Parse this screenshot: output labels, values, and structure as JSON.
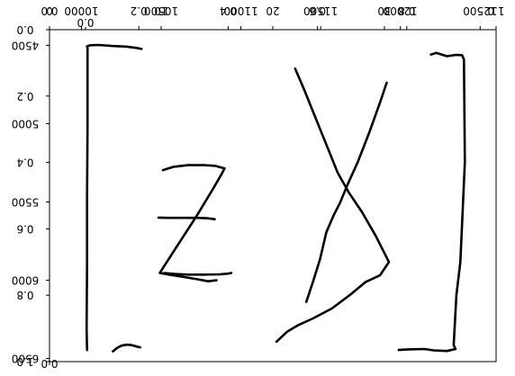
{
  "chart_data": {
    "type": "line",
    "title": "",
    "xlabel": "",
    "ylabel": "",
    "grid": false,
    "legend": "none",
    "axes": [
      {
        "side": "bottom-left",
        "xlim": [
          0,
          1
        ],
        "ylim": [
          0,
          1
        ],
        "y_inverted": true,
        "x_ticks": [
          0.0
        ],
        "x_tick_labels": [
          "0.0"
        ],
        "y_ticks": [
          0.0,
          0.2,
          0.4,
          0.6,
          0.8,
          1.0
        ],
        "y_tick_labels": [
          "0.0",
          "0.2",
          "0.4",
          "0.6",
          "0.8",
          "1.0"
        ]
      },
      {
        "side": "top",
        "xlim": [
          0,
          1
        ],
        "x_ticks": [
          0.0,
          0.2,
          0.4,
          0.6,
          0.8,
          1.0
        ],
        "x_tick_labels": [
          "0.0",
          "0.2",
          "0.4",
          "0.6",
          "0.8",
          "1.0"
        ]
      },
      {
        "side": "top",
        "xlim": [
          0,
          1
        ],
        "x_ticks": [
          0.0
        ],
        "x_tick_labels": [
          "0.0"
        ]
      },
      {
        "side": "top",
        "xlim": [
          9800,
          12600
        ],
        "x_ticks": [
          10000,
          10500,
          11000,
          11500,
          12000,
          12500
        ],
        "x_tick_labels": [
          "10000",
          "10500",
          "11000",
          "11500",
          "12000",
          "12500"
        ]
      },
      {
        "side": "top",
        "xlim": [
          0,
          40
        ],
        "x_ticks": [
          0,
          10,
          20,
          30
        ],
        "x_tick_labels": [
          "0",
          "10",
          "20",
          "30"
        ]
      },
      {
        "side": "left",
        "ylim": [
          4400,
          6520
        ],
        "y_inverted": true,
        "y_ticks": [
          4500,
          5000,
          5500,
          6000,
          6500
        ],
        "y_tick_labels": [
          "4500",
          "5000",
          "5500",
          "6000",
          "6500"
        ]
      }
    ],
    "series": [
      {
        "x": [
          0.142,
          0.145,
          0.151,
          0.161,
          0.172,
          0.183,
          0.192,
          0.199,
          0.203
        ],
        "y": [
          0.969,
          0.966,
          0.959,
          0.952,
          0.949,
          0.95,
          0.953,
          0.956,
          0.957
        ]
      },
      {
        "x": [
          0.084,
          0.083,
          0.084,
          0.084,
          0.085,
          0.085,
          0.085,
          0.085,
          0.084
        ],
        "y": [
          0.965,
          0.9,
          0.7,
          0.5,
          0.3,
          0.1,
          0.07,
          0.055,
          0.05
        ]
      },
      {
        "x": [
          0.084,
          0.091,
          0.11,
          0.14,
          0.172,
          0.195,
          0.206
        ],
        "y": [
          0.05,
          0.047,
          0.046,
          0.049,
          0.051,
          0.055,
          0.058
        ]
      },
      {
        "x": [
          0.257,
          0.28,
          0.31,
          0.344,
          0.38,
          0.4,
          0.407
        ],
        "y": [
          0.733,
          0.736,
          0.738,
          0.738,
          0.737,
          0.735,
          0.733
        ]
      },
      {
        "x": [
          0.254,
          0.278,
          0.31,
          0.345,
          0.37,
          0.392,
          0.386,
          0.366,
          0.33,
          0.29,
          0.252,
          0.247,
          0.268,
          0.3,
          0.332,
          0.355,
          0.374
        ],
        "y": [
          0.423,
          0.413,
          0.408,
          0.408,
          0.41,
          0.418,
          0.433,
          0.48,
          0.56,
          0.643,
          0.722,
          0.733,
          0.738,
          0.745,
          0.752,
          0.758,
          0.755
        ]
      },
      {
        "x": [
          0.244,
          0.265,
          0.3,
          0.33,
          0.352,
          0.364,
          0.37
        ],
        "y": [
          0.566,
          0.567,
          0.567,
          0.567,
          0.568,
          0.57,
          0.571
        ]
      },
      {
        "x": [
          0.55,
          0.57,
          0.6,
          0.63,
          0.645,
          0.67,
          0.7,
          0.73,
          0.76,
          0.74,
          0.708,
          0.672,
          0.632,
          0.59,
          0.557,
          0.532,
          0.508
        ],
        "y": [
          0.117,
          0.18,
          0.28,
          0.38,
          0.43,
          0.49,
          0.55,
          0.62,
          0.7,
          0.74,
          0.76,
          0.8,
          0.84,
          0.87,
          0.89,
          0.91,
          0.94
        ]
      },
      {
        "x": [
          0.755,
          0.74,
          0.716,
          0.69,
          0.668,
          0.651,
          0.636,
          0.62,
          0.606,
          0.59,
          0.575
        ],
        "y": [
          0.16,
          0.22,
          0.31,
          0.4,
          0.465,
          0.52,
          0.56,
          0.61,
          0.69,
          0.76,
          0.82
        ]
      },
      {
        "x": [
          0.854,
          0.866,
          0.89,
          0.91,
          0.924,
          0.928,
          0.93,
          0.92,
          0.911,
          0.905,
          0.909
        ],
        "y": [
          0.075,
          0.07,
          0.08,
          0.076,
          0.077,
          0.09,
          0.4,
          0.7,
          0.8,
          0.95,
          0.962
        ]
      },
      {
        "x": [
          0.909,
          0.89,
          0.86,
          0.84,
          0.81,
          0.793,
          0.782
        ],
        "y": [
          0.962,
          0.968,
          0.966,
          0.962,
          0.963,
          0.964,
          0.965
        ]
      }
    ]
  }
}
